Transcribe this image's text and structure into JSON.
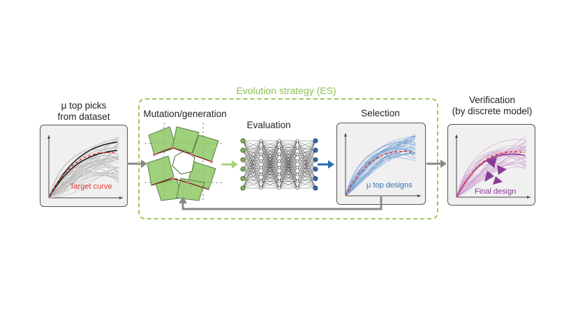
{
  "left_panel": {
    "title_line1": "μ top picks",
    "title_line2": "from dataset",
    "curve_label": "Target curve"
  },
  "es": {
    "title": "Evolution strategy (ES)"
  },
  "mutation": {
    "title": "Mutation/generation"
  },
  "evaluation": {
    "title": "Evaluation"
  },
  "selection": {
    "title": "Selection",
    "curve_label": "μ  top designs"
  },
  "verification": {
    "title_line1": "Verification",
    "title_line2": "(by discrete model)",
    "design_label": "Final design"
  },
  "colors": {
    "target": "#e03b3b",
    "es_green": "#8cc152",
    "node_green": "#7db54a",
    "node_blue": "#2a6bb0",
    "design_purple": "#8a3a96",
    "selection_blue": "#5b8fcf"
  }
}
